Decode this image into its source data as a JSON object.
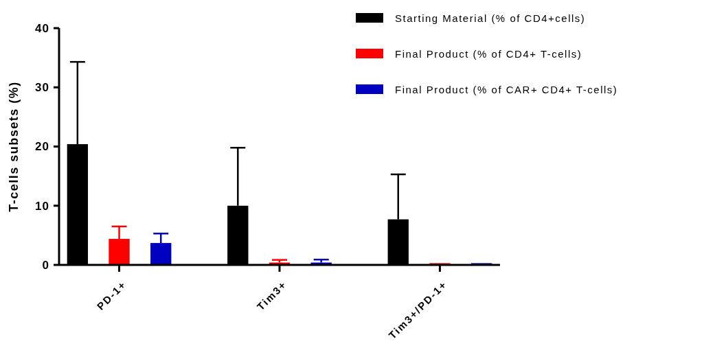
{
  "chart_data": {
    "type": "bar",
    "ylabel": "T-cells subsets (%)",
    "categories": [
      "PD-1+",
      "Tim3+",
      "Tim3+/PD-1+"
    ],
    "series": [
      {
        "name": "Starting Material (% of CD4+cells)",
        "color": "#000000",
        "values": [
          20.4,
          10.0,
          7.7
        ],
        "errors": [
          [
            20.4,
            34.3
          ],
          [
            10.0,
            19.8
          ],
          [
            7.7,
            15.3
          ]
        ]
      },
      {
        "name": "Final Product (% of CD4+ T-cells)",
        "color": "#ff0000",
        "values": [
          4.4,
          0.4,
          0.3
        ],
        "errors": [
          [
            4.4,
            6.5
          ],
          [
            0.4,
            0.85
          ],
          null
        ]
      },
      {
        "name": "Final Product (% of CAR+ CD4+ T-cells)",
        "color": "#0000c0",
        "values": [
          3.7,
          0.4,
          0.3
        ],
        "errors": [
          [
            3.7,
            5.3
          ],
          [
            0.4,
            0.9
          ],
          null
        ]
      }
    ],
    "ylim": [
      0,
      40
    ],
    "yticks": [
      0,
      10,
      20,
      30,
      40
    ],
    "grid": false,
    "legend": "top right"
  }
}
